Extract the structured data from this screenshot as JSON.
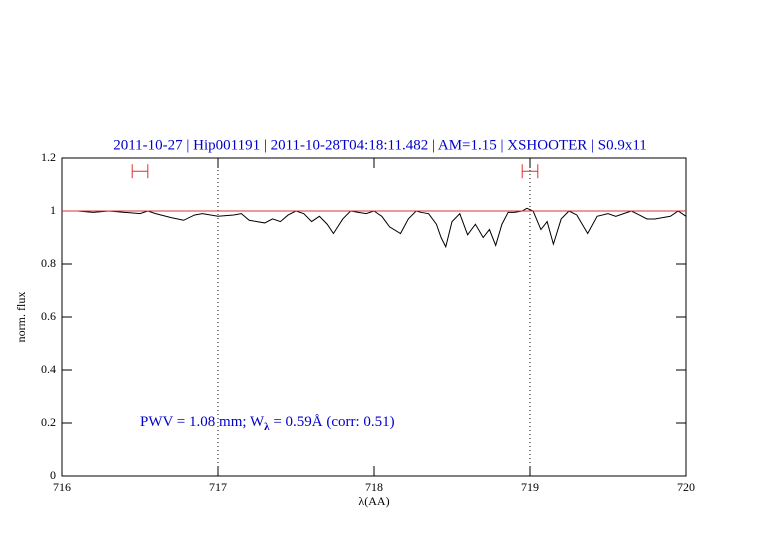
{
  "chart_data": {
    "type": "line",
    "title": "2011-10-27 | Hip001191 | 2011-10-28T04:18:11.482 | AM=1.15 | XSHOOTER | S0.9x11",
    "x_label": "λ(AA)",
    "y_label": "norm. flux",
    "annotation": [
      "PWV = 1.08 mm; W",
      "λ",
      " = 0.59Å (corr: 0.51)"
    ],
    "xlim": [
      716,
      720
    ],
    "ylim": [
      0,
      1.2
    ],
    "xticks": [
      716,
      717,
      718,
      719,
      720
    ],
    "yticks": [
      0,
      0.2,
      0.4,
      0.6,
      0.8,
      1,
      1.2
    ],
    "vlines": [
      717,
      719
    ],
    "series": [
      {
        "color": "#000000",
        "x": [
          716,
          716.1,
          716.2,
          716.3,
          716.4,
          716.5,
          716.55,
          716.6,
          716.7,
          716.78,
          716.85,
          716.9,
          717,
          717.1,
          717.15,
          717.2,
          717.25,
          717.3,
          717.35,
          717.4,
          717.45,
          717.5,
          717.55,
          717.6,
          717.65,
          717.7,
          717.74,
          717.8,
          717.85,
          717.9,
          717.95,
          718,
          718.05,
          718.1,
          718.17,
          718.22,
          718.27,
          718.3,
          718.35,
          718.4,
          718.43,
          718.46,
          718.5,
          718.55,
          718.6,
          718.65,
          718.7,
          718.74,
          718.78,
          718.82,
          718.86,
          718.9,
          718.95,
          718.98,
          719.02,
          719.07,
          719.11,
          719.15,
          719.2,
          719.25,
          719.3,
          719.37,
          719.43,
          719.5,
          719.55,
          719.6,
          719.65,
          719.7,
          719.75,
          719.8,
          719.85,
          719.9,
          719.95,
          720
        ],
        "values": [
          1,
          1,
          0.995,
          1,
          0.995,
          0.99,
          1,
          0.99,
          0.975,
          0.965,
          0.985,
          0.99,
          0.98,
          0.985,
          0.99,
          0.965,
          0.96,
          0.955,
          0.97,
          0.96,
          0.985,
          1,
          0.99,
          0.96,
          0.98,
          0.95,
          0.915,
          0.97,
          1,
          0.995,
          0.99,
          1,
          0.98,
          0.94,
          0.915,
          0.97,
          1,
          0.995,
          0.99,
          0.95,
          0.9,
          0.865,
          0.96,
          0.99,
          0.91,
          0.95,
          0.9,
          0.93,
          0.87,
          0.95,
          0.995,
          0.995,
          1,
          1.01,
          1,
          0.93,
          0.96,
          0.875,
          0.97,
          1,
          0.985,
          0.915,
          0.98,
          0.99,
          0.98,
          0.99,
          1,
          0.985,
          0.97,
          0.97,
          0.975,
          0.98,
          1,
          0.98
        ]
      },
      {
        "color": "#e03030",
        "x": [
          716,
          720
        ],
        "values": [
          1,
          1
        ]
      }
    ],
    "intervals": {
      "color": "#e03030",
      "items": [
        {
          "x": [
            716.45,
            716.55
          ],
          "y": 1.15
        },
        {
          "x": [
            718.95,
            719.05
          ],
          "y": 1.15
        }
      ]
    }
  }
}
